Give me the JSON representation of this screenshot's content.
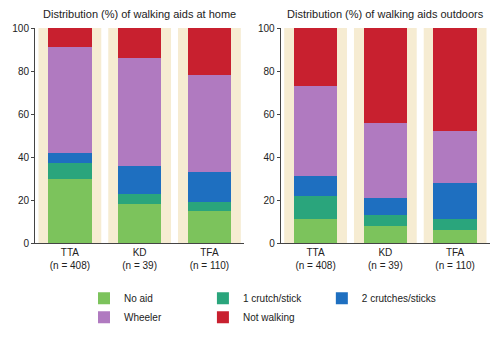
{
  "chart_data": [
    {
      "type": "bar",
      "title": "Distribution (%) of walking aids at home",
      "categories": [
        "TTA\n(n = 408)",
        "KD\n(n = 39)",
        "TFA\n(n = 110)"
      ],
      "stacked": true,
      "grid": false,
      "ylim": [
        0,
        100
      ],
      "yticks": [
        0,
        20,
        40,
        60,
        80,
        100
      ],
      "series": [
        {
          "name": "No aid",
          "color": "#7cc35c",
          "values": [
            30,
            18,
            15
          ]
        },
        {
          "name": "1 crutch/stick",
          "color": "#2aa57c",
          "values": [
            7,
            5,
            4
          ]
        },
        {
          "name": "2 crutches/sticks",
          "color": "#1e6fc0",
          "values": [
            5,
            13,
            14
          ]
        },
        {
          "name": "Wheeler",
          "color": "#b07ac0",
          "values": [
            49,
            50,
            45
          ]
        },
        {
          "name": "Not walking",
          "color": "#c8202f",
          "values": [
            9,
            14,
            22
          ]
        }
      ]
    },
    {
      "type": "bar",
      "title": "Distribution (%) of walking aids outdoors",
      "categories": [
        "TTA\n(n = 408)",
        "KD\n(n = 39)",
        "TFA\n(n = 110)"
      ],
      "stacked": true,
      "grid": false,
      "legend": "bottom",
      "ylim": [
        0,
        100
      ],
      "yticks": [
        0,
        20,
        40,
        60,
        80,
        100
      ],
      "series": [
        {
          "name": "No aid",
          "color": "#7cc35c",
          "values": [
            11,
            8,
            6
          ]
        },
        {
          "name": "1 crutch/stick",
          "color": "#2aa57c",
          "values": [
            11,
            5,
            5
          ]
        },
        {
          "name": "2 crutches/sticks",
          "color": "#1e6fc0",
          "values": [
            9,
            8,
            17
          ]
        },
        {
          "name": "Wheeler",
          "color": "#b07ac0",
          "values": [
            42,
            35,
            24
          ]
        },
        {
          "name": "Not walking",
          "color": "#c8202f",
          "values": [
            27,
            44,
            48
          ]
        }
      ]
    }
  ]
}
